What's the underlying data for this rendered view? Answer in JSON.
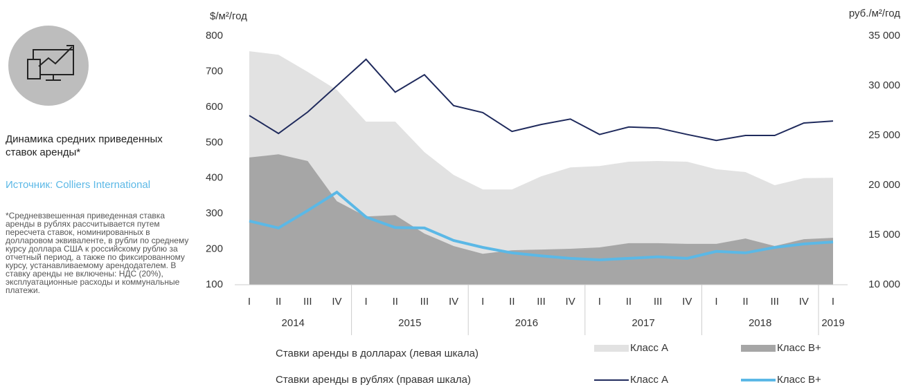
{
  "panel": {
    "title": "Динамика средних приведенных ставок аренды*",
    "source": "Источник: Colliers International",
    "note": "*Средневзвешенная приведенная ставка аренды в рублях рассчитывается путем пересчета ставок, номинированных в долларовом эквиваленте, в рубли по среднему курсу доллара США к российскому рублю за отчетный период, а также по фиксированному курсу, устанавливаемому арендодателем. В ставку аренды не включены: НДС (20%), эксплуатационные расходы и коммунальные платежи."
  },
  "chart_data": {
    "type": "area",
    "ylabel": "$/м²/год",
    "y2label": "руб./м²/год",
    "categories": [
      "I",
      "II",
      "III",
      "IV",
      "I",
      "II",
      "III",
      "IV",
      "I",
      "II",
      "III",
      "IV",
      "I",
      "II",
      "III",
      "IV",
      "I",
      "II",
      "III",
      "IV",
      "I"
    ],
    "years": [
      "2014",
      "2015",
      "2016",
      "2017",
      "2018",
      "2019"
    ],
    "legend_groups": [
      "Ставки аренды в долларах (левая шкала)",
      "Ставки аренды в рублях (правая шкала)"
    ],
    "series": [
      {
        "name": "Класс А",
        "type": "area",
        "axis": "y",
        "color": "#e2e2e2",
        "values": [
          757,
          747,
          699,
          648,
          559,
          559,
          473,
          409,
          368,
          368,
          405,
          430,
          434,
          446,
          448,
          446,
          425,
          417,
          380,
          400,
          401
        ]
      },
      {
        "name": "Класс В+",
        "type": "area",
        "axis": "y",
        "color": "#a6a6a6",
        "values": [
          458,
          467,
          448,
          335,
          292,
          296,
          244,
          209,
          187,
          197,
          199,
          201,
          205,
          217,
          217,
          215,
          215,
          230,
          209,
          228,
          232
        ]
      },
      {
        "name": "Класс А",
        "type": "line",
        "axis": "y2",
        "color": "#1f2a5c",
        "values": [
          27000,
          25200,
          27350,
          30000,
          32650,
          29350,
          31100,
          28000,
          27300,
          25400,
          26100,
          26650,
          25100,
          25850,
          25750,
          25100,
          24500,
          25000,
          25000,
          26250,
          26450
        ]
      },
      {
        "name": "Класс В+",
        "type": "line",
        "axis": "y2",
        "color": "#5bb8e6",
        "values": [
          16400,
          15700,
          17450,
          19300,
          16800,
          15750,
          15700,
          14450,
          13750,
          13200,
          12900,
          12650,
          12500,
          12650,
          12800,
          12650,
          13350,
          13200,
          13750,
          14100,
          14300
        ]
      }
    ],
    "ylim": [
      100,
      800
    ],
    "yticks": [
      100,
      200,
      300,
      400,
      500,
      600,
      700,
      800
    ],
    "y2lim": [
      10000,
      35000
    ],
    "y2ticks": [
      {
        "value": 10000,
        "label": "10 000"
      },
      {
        "value": 15000,
        "label": "15 000"
      },
      {
        "value": 20000,
        "label": "20 000"
      },
      {
        "value": 25000,
        "label": "25 000"
      },
      {
        "value": 30000,
        "label": "30 000"
      },
      {
        "value": 35000,
        "label": "35 000"
      }
    ]
  }
}
